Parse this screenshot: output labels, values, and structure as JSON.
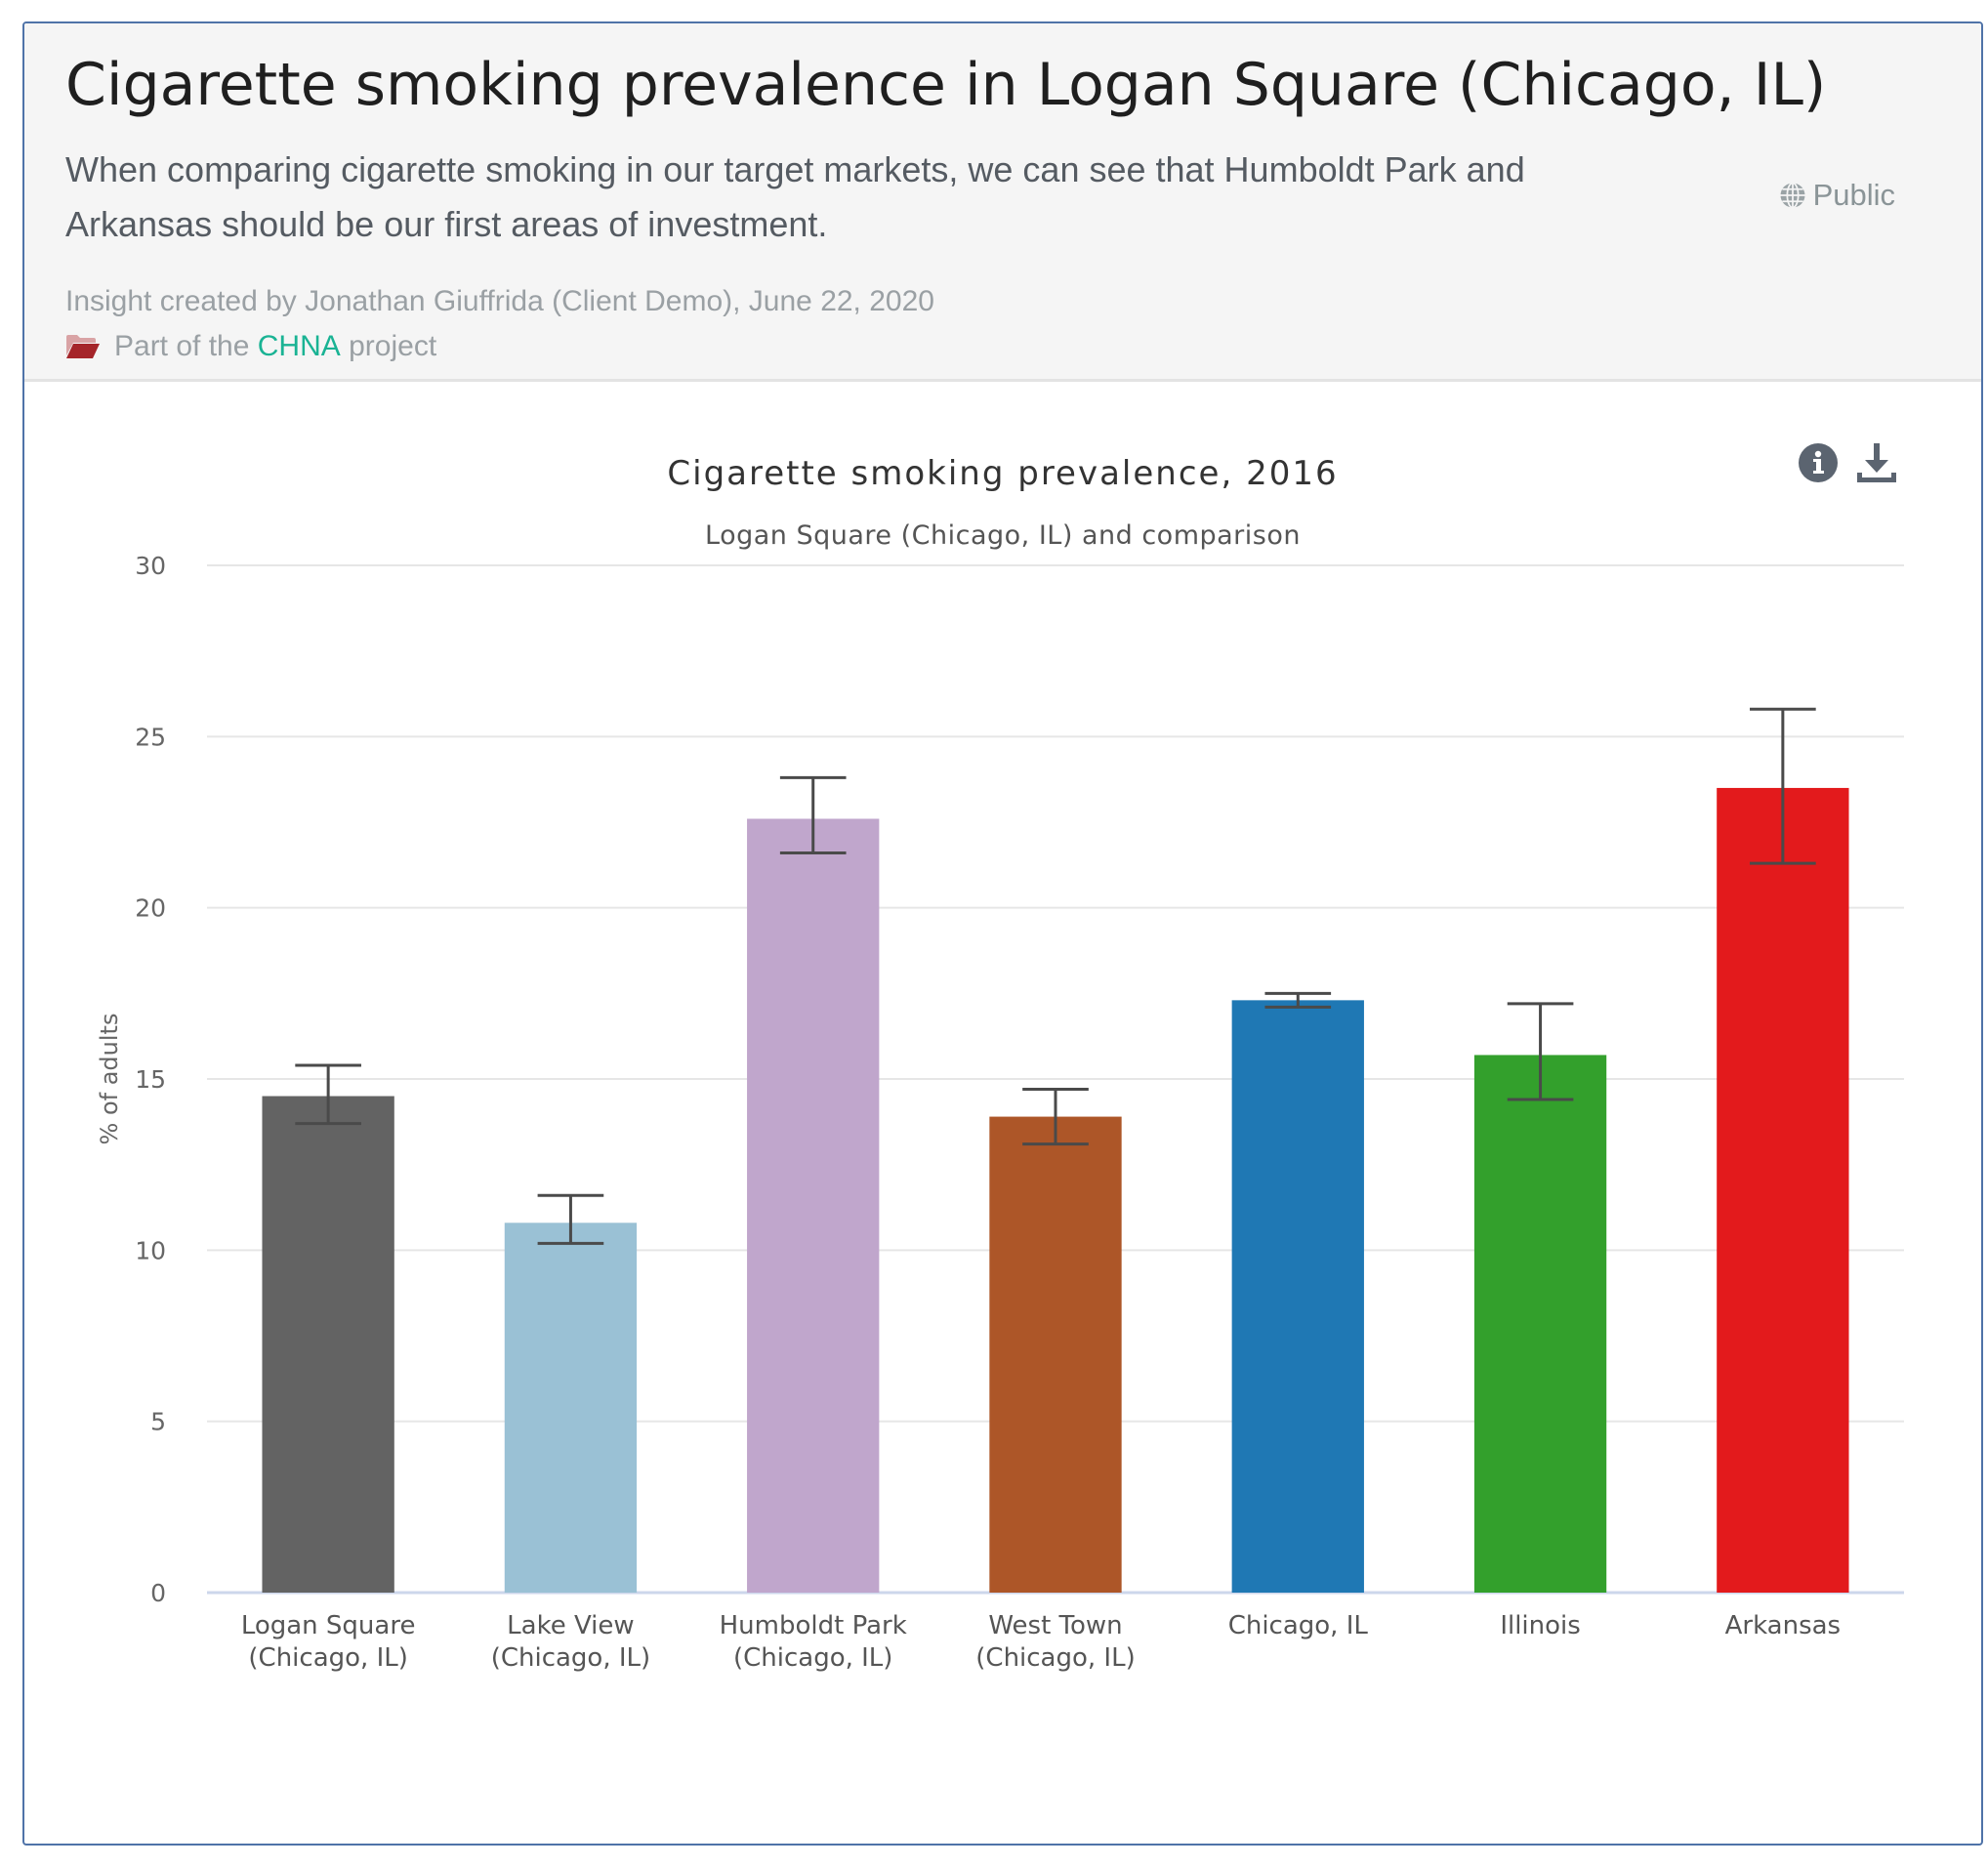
{
  "insight": {
    "title": "Cigarette smoking prevalence in Logan Square (Chicago, IL)",
    "description": "When comparing cigarette smoking in our target markets, we can see that Humboldt Park and Arkansas should be our first areas of investment.",
    "visibility": {
      "label": "Public",
      "icon": "globe-icon"
    },
    "meta": "Insight created by Jonathan Giuffrida (Client Demo), June 22, 2020",
    "project": {
      "prefix": "Part of the",
      "name": "CHNA",
      "suffix": "project",
      "icon": "folder-open-icon"
    }
  },
  "colors": {
    "link": "#1ab394",
    "folder": "#a5252a",
    "card_border": "#4f73a8"
  },
  "toolbar": {
    "info_icon": "info-circle-icon",
    "download_icon": "download-icon"
  },
  "chart_data": {
    "type": "bar",
    "title": "Cigarette smoking prevalence, 2016",
    "subtitle": "Logan Square (Chicago, IL) and comparison",
    "xlabel": "",
    "ylabel": "% of adults",
    "ylim": [
      0,
      30
    ],
    "yticks": [
      0,
      5,
      10,
      15,
      20,
      25,
      30
    ],
    "grid": true,
    "legend": "none",
    "categories": [
      [
        "Logan Square",
        "(Chicago, IL)"
      ],
      [
        "Lake View",
        "(Chicago, IL)"
      ],
      [
        "Humboldt Park",
        "(Chicago, IL)"
      ],
      [
        "West Town",
        "(Chicago, IL)"
      ],
      [
        "Chicago, IL"
      ],
      [
        "Illinois"
      ],
      [
        "Arkansas"
      ]
    ],
    "values": [
      14.5,
      10.8,
      22.6,
      13.9,
      17.3,
      15.7,
      23.5
    ],
    "error_low": [
      13.7,
      10.2,
      21.6,
      13.1,
      17.1,
      14.4,
      21.3
    ],
    "error_high": [
      15.4,
      11.6,
      23.8,
      14.7,
      17.5,
      17.2,
      25.8
    ],
    "bar_colors": [
      "#636363",
      "#9ac1d5",
      "#c0a6cc",
      "#ad5628",
      "#1f78b4",
      "#33a02c",
      "#e31a1c"
    ]
  }
}
